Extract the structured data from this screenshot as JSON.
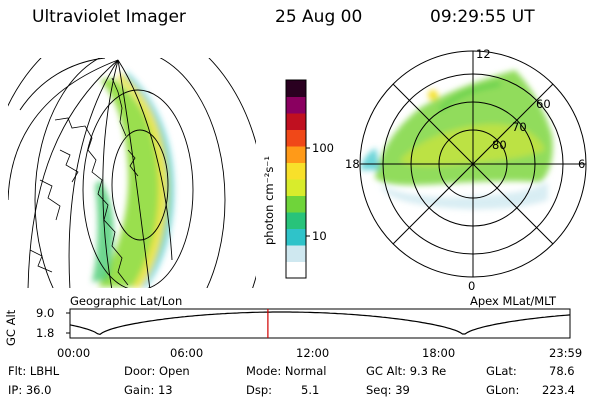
{
  "header": {
    "instrument": "Ultraviolet Imager",
    "date": "25 Aug 00",
    "time": "09:29:55 UT"
  },
  "colorbar": {
    "unit_label": "photon cm⁻²s⁻¹",
    "ticks": [
      "100",
      "10"
    ],
    "scale": "log",
    "colors": [
      "#ffffff",
      "#cfe8f0",
      "#2fc3c9",
      "#28c37a",
      "#6fd43a",
      "#d8ec2c",
      "#f8e02a",
      "#ff9a18",
      "#f04818",
      "#c01020",
      "#8a0060",
      "#2a0020"
    ]
  },
  "left_panel": {
    "caption": "Geographic Lat/Lon"
  },
  "right_panel": {
    "caption": "Apex MLat/MLT",
    "lat_labels": [
      "80",
      "70",
      "60"
    ],
    "mlt_labels": {
      "top": "12",
      "left": "18",
      "right": "6",
      "bottom": "0"
    }
  },
  "altitude_plot": {
    "ylabel": "GC Alt",
    "yticks": [
      "9.0",
      "1.8"
    ],
    "xticks": [
      "00:00",
      "06:00",
      "12:00",
      "18:00",
      "23:59"
    ],
    "marker_time": "09:29:55",
    "marker_color": "#d00000"
  },
  "info": {
    "filter": "Flt: LBHL",
    "ip": "IP: 36.0",
    "door": "Door: Open",
    "gain": "Gain: 13",
    "mode": "Mode: Normal",
    "dsp": "Dsp:",
    "dsp_val": "5.1",
    "gc_alt": "GC Alt: 9.3 Re",
    "seq": "Seq: 39",
    "glat_label": "GLat:",
    "glat_val": "78.6",
    "glon_label": "GLon:",
    "glon_val": "223.4"
  }
}
